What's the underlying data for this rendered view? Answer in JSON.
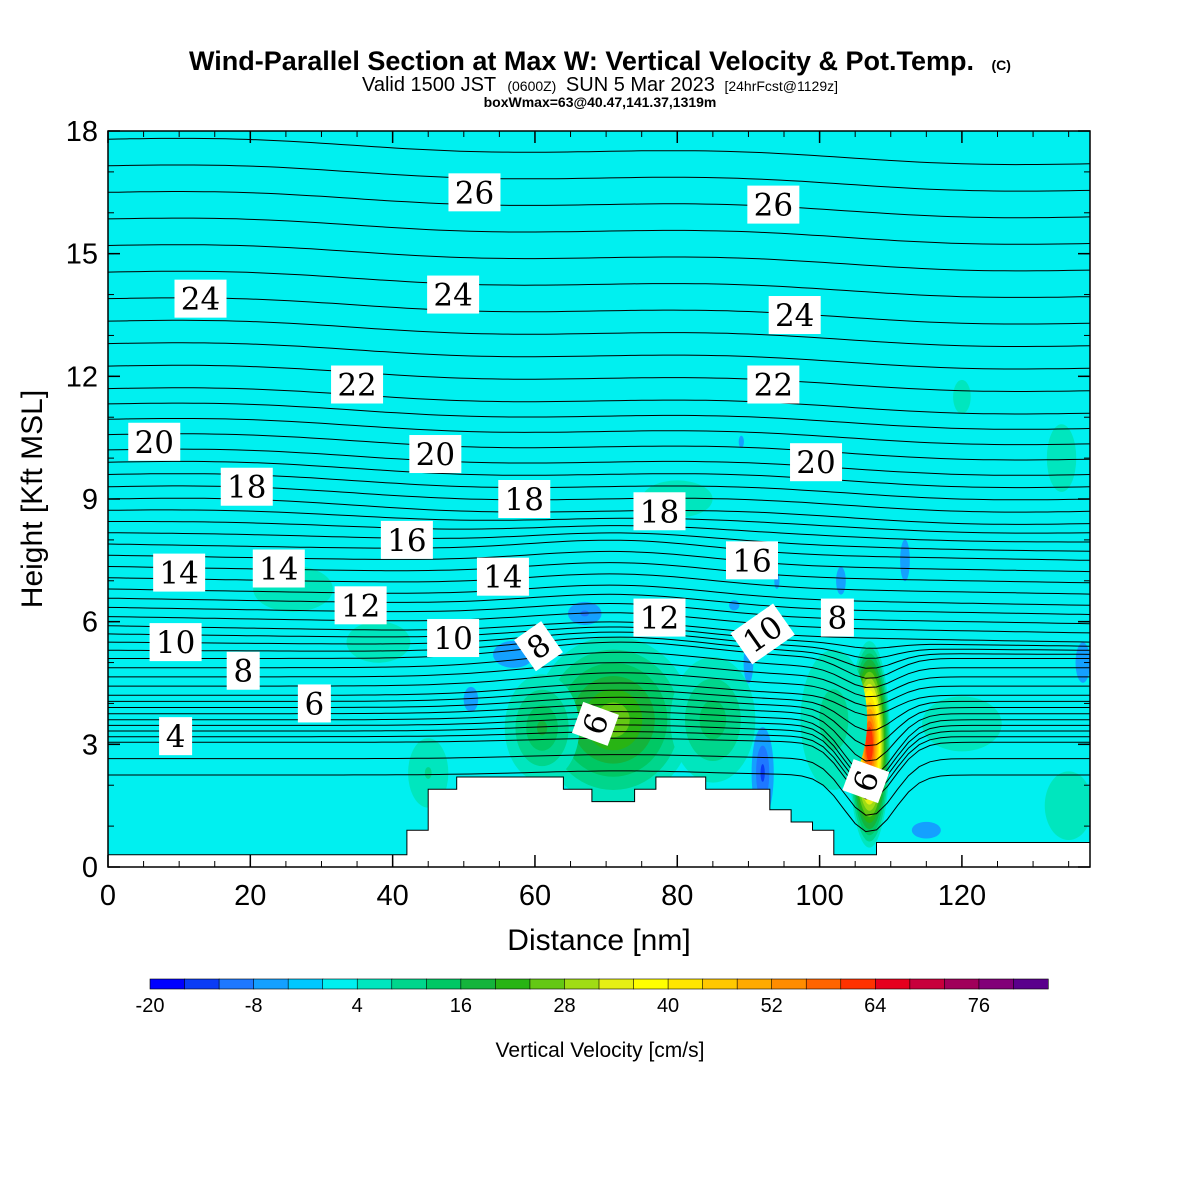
{
  "header": {
    "title": "Wind-Parallel Section at Max W: Vertical Velocity & Pot.Temp.",
    "title_mark": "(C)",
    "valid_prefix": "Valid 1500 JST",
    "valid_utc": "(0600Z)",
    "valid_date": "SUN 5 Mar 2023",
    "forecast": "[24hrFcst@1129z]",
    "box_info": "boxWmax=63@40.47,141.37,1319m"
  },
  "chart_data": {
    "type": "contour",
    "xlabel": "Distance [nm]",
    "ylabel": "Height [Kft MSL]",
    "xlim": [
      0,
      138
    ],
    "ylim": [
      0,
      18
    ],
    "x_ticks": [
      0,
      20,
      40,
      60,
      80,
      100,
      120
    ],
    "y_ticks": [
      0,
      3,
      6,
      9,
      12,
      15,
      18
    ],
    "fill_variable": "Vertical Velocity [cm/s]",
    "background_velocity_cm_s": 2,
    "colorbar": {
      "label": "Vertical Velocity [cm/s]",
      "tick_labels": [
        -20,
        -8,
        4,
        16,
        28,
        40,
        52,
        64,
        76
      ],
      "levels": [
        -20,
        -16,
        -12,
        -8,
        -4,
        0,
        4,
        8,
        12,
        16,
        20,
        24,
        28,
        32,
        36,
        40,
        44,
        48,
        52,
        56,
        60,
        64,
        68,
        72,
        76,
        80
      ],
      "colors": [
        "#0000ff",
        "#0a3cf5",
        "#1e78ff",
        "#14a0ff",
        "#00c8ff",
        "#00f0f0",
        "#00e6be",
        "#00d68c",
        "#00c864",
        "#14b43c",
        "#28b414",
        "#64c814",
        "#a0dc14",
        "#e6f014",
        "#ffff00",
        "#ffe600",
        "#ffc800",
        "#ffaa00",
        "#ff8c00",
        "#ff6400",
        "#ff3200",
        "#e6001e",
        "#c8003c",
        "#a0005a",
        "#820078",
        "#5a008c"
      ]
    },
    "velocity_features": [
      {
        "x": 71,
        "y": 3.6,
        "rx": 12,
        "ry": 2.2,
        "peak": 26
      },
      {
        "x": 61,
        "y": 3.4,
        "rx": 6,
        "ry": 1.5,
        "peak": 16
      },
      {
        "x": 85,
        "y": 3.6,
        "rx": 7,
        "ry": 1.8,
        "peak": 14
      },
      {
        "x": 107,
        "y": 3.0,
        "rx": 3,
        "ry": 2.6,
        "peak": 63
      },
      {
        "x": 102,
        "y": 3.6,
        "rx": 6,
        "ry": 2.2,
        "peak": 10
      },
      {
        "x": 26,
        "y": 6.8,
        "rx": 10,
        "ry": 1.0,
        "peak": 6
      },
      {
        "x": 38,
        "y": 5.5,
        "rx": 8,
        "ry": 0.9,
        "peak": 6
      },
      {
        "x": 45,
        "y": 2.3,
        "rx": 4,
        "ry": 1.2,
        "peak": 8
      },
      {
        "x": 80,
        "y": 9.0,
        "rx": 12,
        "ry": 1.1,
        "peak": 5
      },
      {
        "x": 120,
        "y": 3.5,
        "rx": 10,
        "ry": 1.2,
        "peak": 6
      },
      {
        "x": 135,
        "y": 1.5,
        "rx": 6,
        "ry": 1.5,
        "peak": 6
      },
      {
        "x": 134,
        "y": 10.0,
        "rx": 5,
        "ry": 2.0,
        "peak": 5
      },
      {
        "x": 120,
        "y": 11.5,
        "rx": 3,
        "ry": 1.0,
        "peak": 5
      },
      {
        "x": 67,
        "y": 6.2,
        "rx": 5,
        "ry": 0.6,
        "peak": -8
      },
      {
        "x": 57,
        "y": 5.2,
        "rx": 7,
        "ry": 0.8,
        "peak": -7
      },
      {
        "x": 51,
        "y": 4.1,
        "rx": 3,
        "ry": 0.9,
        "peak": -6
      },
      {
        "x": 92,
        "y": 2.3,
        "rx": 2.5,
        "ry": 1.8,
        "peak": -12
      },
      {
        "x": 90,
        "y": 5.0,
        "rx": 2,
        "ry": 1.5,
        "peak": -6
      },
      {
        "x": 103,
        "y": 7.0,
        "rx": 2,
        "ry": 1.0,
        "peak": -6
      },
      {
        "x": 112,
        "y": 7.5,
        "rx": 2,
        "ry": 1.5,
        "peak": -6
      },
      {
        "x": 115,
        "y": 0.9,
        "rx": 6,
        "ry": 0.6,
        "peak": -6
      },
      {
        "x": 89,
        "y": 10.4,
        "rx": 1.5,
        "ry": 0.6,
        "peak": -5
      },
      {
        "x": 137,
        "y": 5.0,
        "rx": 2.5,
        "ry": 1.2,
        "peak": -7
      },
      {
        "x": 94,
        "y": 7.0,
        "rx": 1.5,
        "ry": 0.8,
        "peak": -5
      },
      {
        "x": 88,
        "y": 6.4,
        "rx": 3,
        "ry": 0.5,
        "peak": -5
      }
    ],
    "terrain": [
      [
        0,
        0.3
      ],
      [
        42,
        0.3
      ],
      [
        42,
        0.9
      ],
      [
        45,
        0.9
      ],
      [
        45,
        1.9
      ],
      [
        49,
        1.9
      ],
      [
        49,
        2.2
      ],
      [
        64,
        2.2
      ],
      [
        64,
        1.9
      ],
      [
        68,
        1.9
      ],
      [
        68,
        1.6
      ],
      [
        74,
        1.6
      ],
      [
        74,
        1.9
      ],
      [
        77,
        1.9
      ],
      [
        77,
        2.2
      ],
      [
        84,
        2.2
      ],
      [
        84,
        1.9
      ],
      [
        93,
        1.9
      ],
      [
        93,
        1.4
      ],
      [
        96,
        1.4
      ],
      [
        96,
        1.1
      ],
      [
        99,
        1.1
      ],
      [
        99,
        0.9
      ],
      [
        102,
        0.9
      ],
      [
        102,
        0.3
      ],
      [
        108,
        0.3
      ],
      [
        108,
        0.6
      ],
      [
        138,
        0.6
      ]
    ],
    "isentrope_levels": [
      4,
      6,
      8,
      10,
      12,
      14,
      16,
      18,
      20,
      22,
      24,
      26
    ],
    "isentrope_labels": [
      {
        "text": "26",
        "x": 51.5,
        "y": 16.5,
        "rot": 0
      },
      {
        "text": "26",
        "x": 93.5,
        "y": 16.2,
        "rot": 0
      },
      {
        "text": "24",
        "x": 13,
        "y": 13.9,
        "rot": 0
      },
      {
        "text": "24",
        "x": 48.5,
        "y": 14.0,
        "rot": 0
      },
      {
        "text": "24",
        "x": 96.5,
        "y": 13.5,
        "rot": 0
      },
      {
        "text": "22",
        "x": 35,
        "y": 11.8,
        "rot": 0
      },
      {
        "text": "22",
        "x": 93.5,
        "y": 11.8,
        "rot": 0
      },
      {
        "text": "20",
        "x": 6.5,
        "y": 10.4,
        "rot": 0
      },
      {
        "text": "20",
        "x": 46,
        "y": 10.1,
        "rot": 0
      },
      {
        "text": "20",
        "x": 99.5,
        "y": 9.9,
        "rot": 0
      },
      {
        "text": "18",
        "x": 19.5,
        "y": 9.3,
        "rot": 0
      },
      {
        "text": "18",
        "x": 58.5,
        "y": 9.0,
        "rot": 0
      },
      {
        "text": "18",
        "x": 77.5,
        "y": 8.7,
        "rot": 0
      },
      {
        "text": "16",
        "x": 42,
        "y": 8.0,
        "rot": 0
      },
      {
        "text": "16",
        "x": 90.5,
        "y": 7.5,
        "rot": 0
      },
      {
        "text": "14",
        "x": 10,
        "y": 7.2,
        "rot": 0
      },
      {
        "text": "14",
        "x": 24,
        "y": 7.3,
        "rot": 0
      },
      {
        "text": "14",
        "x": 55.5,
        "y": 7.1,
        "rot": 0
      },
      {
        "text": "12",
        "x": 35.5,
        "y": 6.4,
        "rot": 0
      },
      {
        "text": "12",
        "x": 77.5,
        "y": 6.1,
        "rot": 0
      },
      {
        "text": "10",
        "x": 9.5,
        "y": 5.5,
        "rot": 0
      },
      {
        "text": "10",
        "x": 48.5,
        "y": 5.6,
        "rot": 0
      },
      {
        "text": "10",
        "x": 92,
        "y": 5.7,
        "rot": -35
      },
      {
        "text": "8",
        "x": 19,
        "y": 4.8,
        "rot": 0
      },
      {
        "text": "8",
        "x": 60.5,
        "y": 5.4,
        "rot": -35
      },
      {
        "text": "8",
        "x": 102.5,
        "y": 6.1,
        "rot": 0
      },
      {
        "text": "6",
        "x": 29,
        "y": 4.0,
        "rot": 0
      },
      {
        "text": "6",
        "x": 68.5,
        "y": 3.5,
        "rot": -70
      },
      {
        "text": "6",
        "x": 106.5,
        "y": 2.1,
        "rot": -70
      },
      {
        "text": "4",
        "x": 9.5,
        "y": 3.2,
        "rot": 0
      }
    ]
  }
}
